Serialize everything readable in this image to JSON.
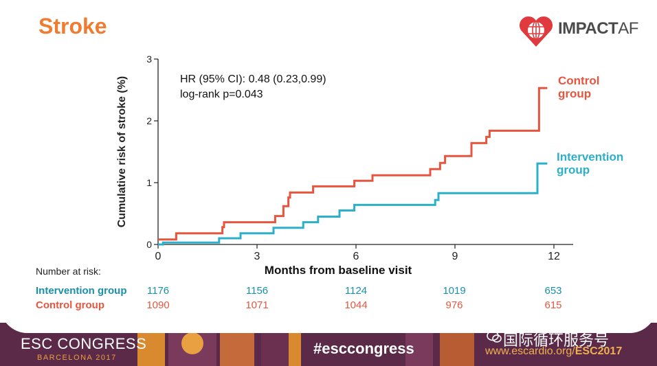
{
  "slide": {
    "title": "Stroke",
    "logo": {
      "name": "IMPACT",
      "suffix": "AF"
    }
  },
  "chart_data": {
    "type": "line",
    "title": "",
    "xlabel": "Months from baseline visit",
    "ylabel": "Cumulative risk of stroke (%)",
    "xlim": [
      0,
      12
    ],
    "ylim": [
      0,
      3
    ],
    "xticks": [
      "0",
      "3",
      "6",
      "9",
      "12"
    ],
    "yticks": [
      "0",
      "1",
      "2",
      "3"
    ],
    "annotation": [
      "HR (95% CI): 0.48 (0.23,0.99)",
      "log-rank p=0.043"
    ],
    "series": [
      {
        "name": "Control group",
        "color": "#e8553e",
        "steps": [
          [
            0,
            0.08
          ],
          [
            0.55,
            0.18
          ],
          [
            1.95,
            0.28
          ],
          [
            2.0,
            0.36
          ],
          [
            3.2,
            0.36
          ],
          [
            3.55,
            0.46
          ],
          [
            3.8,
            0.62
          ],
          [
            3.95,
            0.76
          ],
          [
            4.0,
            0.84
          ],
          [
            4.7,
            0.94
          ],
          [
            5.95,
            1.03
          ],
          [
            6.5,
            1.12
          ],
          [
            8.25,
            1.22
          ],
          [
            8.55,
            1.32
          ],
          [
            8.7,
            1.43
          ],
          [
            9.5,
            1.64
          ],
          [
            9.95,
            1.74
          ],
          [
            10.05,
            1.84
          ],
          [
            11.55,
            2.53
          ],
          [
            11.8,
            2.53
          ]
        ]
      },
      {
        "name": "Intervention group",
        "color": "#2ab0c9",
        "steps": [
          [
            0,
            0.0
          ],
          [
            0.15,
            0.03
          ],
          [
            1.85,
            0.1
          ],
          [
            2.5,
            0.18
          ],
          [
            3.5,
            0.27
          ],
          [
            4.4,
            0.36
          ],
          [
            4.85,
            0.45
          ],
          [
            5.5,
            0.55
          ],
          [
            5.95,
            0.64
          ],
          [
            8.4,
            0.72
          ],
          [
            8.5,
            0.83
          ],
          [
            11.5,
            1.31
          ],
          [
            11.8,
            1.31
          ]
        ]
      }
    ]
  },
  "risk_table": {
    "heading": "Number at risk:",
    "rows": [
      {
        "label": "Intervention group",
        "color": "#1a8fa8",
        "values": [
          "1176",
          "1156",
          "1124",
          "1019",
          "653"
        ]
      },
      {
        "label": "Control group",
        "color": "#e8553e",
        "values": [
          "1090",
          "1071",
          "1044",
          "976",
          "615"
        ]
      }
    ]
  },
  "footer": {
    "congress": "ESC CONGRESS",
    "city": "BARCELONA 2017",
    "hashtag": "#esccongress",
    "url_prefix": "www.escardio.org/",
    "url_bold": "ESC2017",
    "wechat": "国际循环服务号"
  }
}
